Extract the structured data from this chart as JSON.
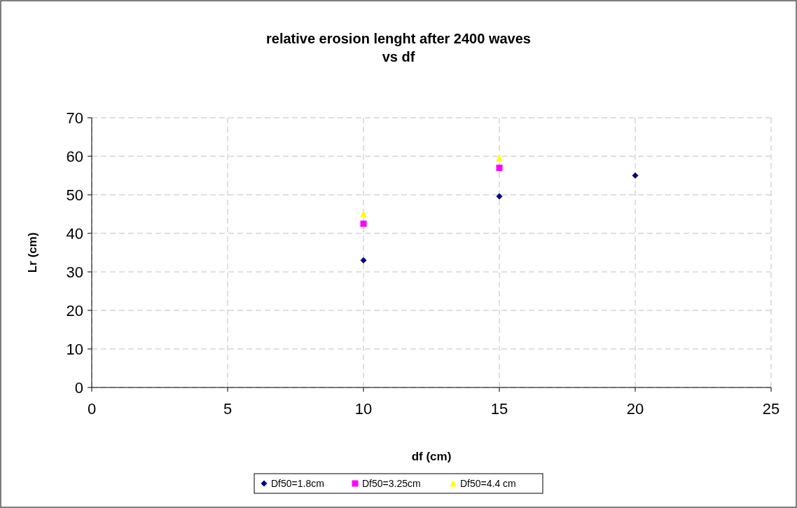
{
  "chart_data": {
    "type": "scatter",
    "title": "relative erosion lenght after 2400 waves\nvs df",
    "xlabel": "df (cm)",
    "ylabel": "Lr (cm)",
    "xlim": [
      0,
      25
    ],
    "xticks": [
      0,
      5,
      10,
      15,
      20,
      25
    ],
    "ylim": [
      0,
      70
    ],
    "yticks": [
      0,
      10,
      20,
      30,
      40,
      50,
      60,
      70
    ],
    "grid": true,
    "legend": "bottom",
    "series": [
      {
        "name": "Df50=1.8cm",
        "color": "#000080",
        "marker": "diamond",
        "x": [
          10,
          15,
          20
        ],
        "values": [
          33,
          49.6,
          55
        ]
      },
      {
        "name": "Df50=3.25cm",
        "color": "#ff00ff",
        "marker": "square",
        "x": [
          10,
          15
        ],
        "values": [
          42.5,
          57
        ]
      },
      {
        "name": "Df50=4.4 cm",
        "color": "#ffff00",
        "marker": "triangle",
        "x": [
          10,
          15
        ],
        "values": [
          45,
          59.5
        ]
      }
    ]
  }
}
